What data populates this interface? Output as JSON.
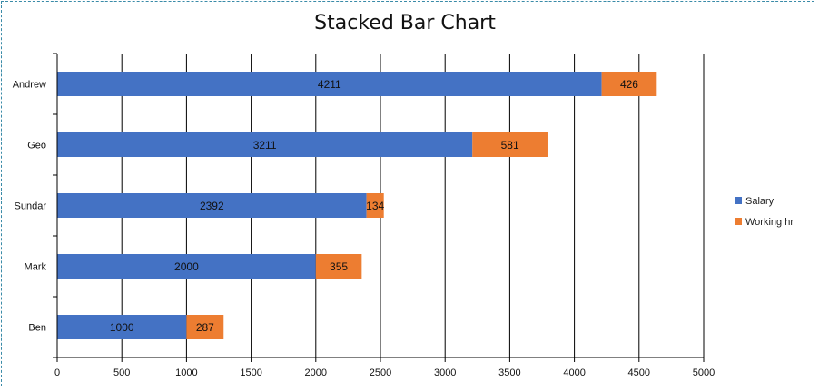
{
  "chart_data": {
    "type": "bar",
    "orientation": "horizontal",
    "stacked": true,
    "title": "Stacked Bar Chart",
    "categories": [
      "Andrew",
      "Geo",
      "Sundar",
      "Mark",
      "Ben"
    ],
    "series": [
      {
        "name": "Salary",
        "values": [
          4211,
          3211,
          2392,
          2000,
          1000
        ],
        "color": "#4472c4"
      },
      {
        "name": "Working hr",
        "values": [
          426,
          581,
          134,
          355,
          287
        ],
        "color": "#ed7d31"
      }
    ],
    "xlim": [
      0,
      5000
    ],
    "xticks": [
      "0",
      "500",
      "1000",
      "1500",
      "2000",
      "2500",
      "3000",
      "3500",
      "4000",
      "4500",
      "5000"
    ],
    "grid": "vertical",
    "legend_position": "right"
  }
}
